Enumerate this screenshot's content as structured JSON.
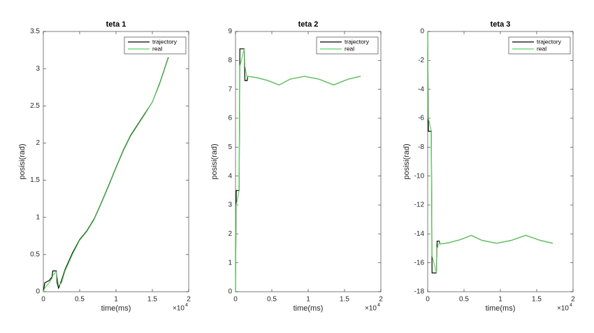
{
  "chart_data": [
    {
      "type": "line",
      "title": "teta 1",
      "xlabel": "time(ms)",
      "ylabel": "posisi(rad)",
      "x_scale_label": "×10",
      "x_scale_exponent": "4",
      "x": [
        0,
        0.02,
        0.08,
        0.12,
        0.13,
        0.18,
        0.19,
        0.21,
        0.25,
        0.3,
        0.4,
        0.5,
        0.6,
        0.7,
        0.8,
        0.9,
        1.0,
        1.1,
        1.2,
        1.3,
        1.4,
        1.5,
        1.6,
        1.72
      ],
      "series": [
        {
          "name": "trajectory",
          "color": "#000000",
          "values": [
            0,
            0.12,
            0.15,
            0.2,
            0.28,
            0.28,
            0.12,
            0.05,
            0.15,
            0.3,
            0.52,
            0.7,
            0.82,
            0.98,
            1.2,
            1.43,
            1.67,
            1.9,
            2.1,
            2.25,
            2.4,
            2.55,
            2.8,
            3.15
          ]
        },
        {
          "name": "real",
          "color": "#5fd35f",
          "values": [
            0,
            0.05,
            0.12,
            0.18,
            0.22,
            0.27,
            0.2,
            0.08,
            0.12,
            0.28,
            0.5,
            0.69,
            0.81,
            0.97,
            1.19,
            1.42,
            1.66,
            1.89,
            2.09,
            2.24,
            2.39,
            2.55,
            2.79,
            3.14
          ]
        }
      ],
      "xlim": [
        0,
        2
      ],
      "xticks": [
        0,
        0.5,
        1,
        1.5,
        2
      ],
      "ylim": [
        0,
        3.5
      ],
      "yticks": [
        0,
        0.5,
        1,
        1.5,
        2,
        2.5,
        3,
        3.5
      ],
      "grid": false,
      "legend": "northeast"
    },
    {
      "type": "line",
      "title": "teta 2",
      "xlabel": "time(ms)",
      "ylabel": "posisi(rad)",
      "x_scale_label": "×10",
      "x_scale_exponent": "4",
      "x": [
        0,
        0.01,
        0.05,
        0.06,
        0.12,
        0.13,
        0.16,
        0.17,
        0.3,
        0.45,
        0.6,
        0.75,
        0.95,
        1.15,
        1.35,
        1.55,
        1.72
      ],
      "series": [
        {
          "name": "trajectory",
          "color": "#000000",
          "values": [
            0,
            3.5,
            3.5,
            8.4,
            8.4,
            7.3,
            7.3,
            7.45,
            7.4,
            7.3,
            7.15,
            7.35,
            7.45,
            7.35,
            7.15,
            7.35,
            7.45
          ]
        },
        {
          "name": "real",
          "color": "#5fd35f",
          "values": [
            0,
            3.0,
            3.5,
            7.8,
            8.4,
            7.8,
            7.4,
            7.45,
            7.4,
            7.3,
            7.15,
            7.35,
            7.45,
            7.35,
            7.15,
            7.35,
            7.45
          ]
        }
      ],
      "xlim": [
        0,
        2
      ],
      "xticks": [
        0,
        0.5,
        1,
        1.5,
        2
      ],
      "ylim": [
        0,
        9
      ],
      "yticks": [
        0,
        1,
        2,
        3,
        4,
        5,
        6,
        7,
        8,
        9
      ],
      "grid": false,
      "legend": "northeast"
    },
    {
      "type": "line",
      "title": "teta 3",
      "xlabel": "time(ms)",
      "ylabel": "posisi(rad)",
      "x_scale_label": "×10",
      "x_scale_exponent": "4",
      "x": [
        0,
        0.01,
        0.05,
        0.06,
        0.12,
        0.13,
        0.16,
        0.17,
        0.3,
        0.45,
        0.6,
        0.75,
        0.95,
        1.15,
        1.35,
        1.55,
        1.72
      ],
      "series": [
        {
          "name": "trajectory",
          "color": "#000000",
          "values": [
            0,
            -6.9,
            -6.9,
            -16.7,
            -16.7,
            -14.5,
            -14.5,
            -14.7,
            -14.6,
            -14.4,
            -14.1,
            -14.45,
            -14.65,
            -14.45,
            -14.1,
            -14.45,
            -14.65
          ]
        },
        {
          "name": "real",
          "color": "#5fd35f",
          "values": [
            0,
            -6.0,
            -6.9,
            -15.5,
            -16.7,
            -15.0,
            -14.6,
            -14.7,
            -14.6,
            -14.4,
            -14.1,
            -14.45,
            -14.65,
            -14.45,
            -14.1,
            -14.45,
            -14.65
          ]
        }
      ],
      "xlim": [
        0,
        2
      ],
      "xticks": [
        0,
        0.5,
        1,
        1.5,
        2
      ],
      "ylim": [
        -18,
        0
      ],
      "yticks": [
        -18,
        -16,
        -14,
        -12,
        -10,
        -8,
        -6,
        -4,
        -2,
        0
      ],
      "grid": false,
      "legend": "northeast"
    }
  ]
}
